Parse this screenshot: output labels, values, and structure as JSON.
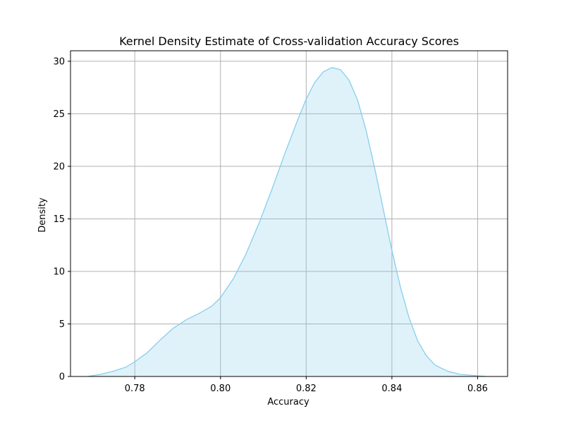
{
  "chart_data": {
    "type": "area",
    "title": "Kernel Density Estimate of Cross-validation Accuracy Scores",
    "xlabel": "Accuracy",
    "ylabel": "Density",
    "xlim": [
      0.765,
      0.867
    ],
    "ylim": [
      0,
      31
    ],
    "xticks": [
      0.78,
      0.8,
      0.82,
      0.84,
      0.86
    ],
    "xtick_labels": [
      "0.78",
      "0.80",
      "0.82",
      "0.84",
      "0.86"
    ],
    "yticks": [
      0,
      5,
      10,
      15,
      20,
      25,
      30
    ],
    "ytick_labels": [
      "0",
      "5",
      "10",
      "15",
      "20",
      "25",
      "30"
    ],
    "grid": true,
    "colors": {
      "line": "#87ceeb",
      "fill": "#87ceeb",
      "grid": "#b0b0b0",
      "axes": "#000000"
    },
    "series": [
      {
        "x": [
          0.769,
          0.772,
          0.775,
          0.778,
          0.78,
          0.783,
          0.786,
          0.789,
          0.792,
          0.795,
          0.798,
          0.8,
          0.803,
          0.806,
          0.809,
          0.812,
          0.815,
          0.818,
          0.82,
          0.822,
          0.824,
          0.826,
          0.828,
          0.83,
          0.832,
          0.834,
          0.836,
          0.838,
          0.84,
          0.842,
          0.844,
          0.846,
          0.848,
          0.85,
          0.853,
          0.856,
          0.859,
          0.862
        ],
        "y": [
          0.0,
          0.2,
          0.5,
          0.9,
          1.4,
          2.3,
          3.5,
          4.6,
          5.4,
          6.0,
          6.7,
          7.5,
          9.3,
          11.7,
          14.6,
          17.8,
          21.2,
          24.4,
          26.4,
          28.0,
          29.0,
          29.4,
          29.2,
          28.2,
          26.3,
          23.4,
          19.8,
          15.9,
          12.0,
          8.5,
          5.6,
          3.4,
          2.0,
          1.1,
          0.5,
          0.2,
          0.1,
          0.0
        ]
      }
    ]
  }
}
